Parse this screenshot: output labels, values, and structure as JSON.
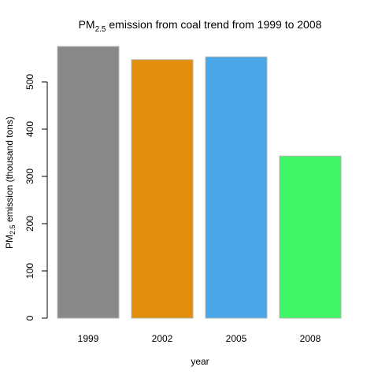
{
  "chart_data": {
    "type": "bar",
    "title": {
      "prefix": "PM",
      "subscript": "2.5",
      "suffix": " emission from coal trend from 1999 to 2008"
    },
    "xlabel": "year",
    "ylabel": {
      "prefix": "PM",
      "subscript": "2.5",
      "suffix": " emission (thousand tons)"
    },
    "categories": [
      "1999",
      "2002",
      "2005",
      "2008"
    ],
    "values": [
      575,
      547,
      553,
      343
    ],
    "colors": [
      "#888888",
      "#e08e0b",
      "#4aa6e6",
      "#40f566"
    ],
    "ylim": [
      0,
      575
    ],
    "yticks": [
      0,
      100,
      200,
      300,
      400,
      500
    ],
    "grid": false,
    "legend": "none"
  }
}
